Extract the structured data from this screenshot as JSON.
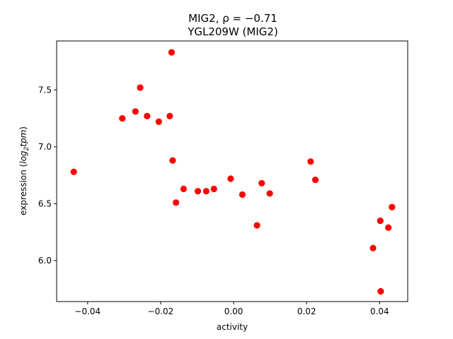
{
  "chart_data": {
    "type": "scatter",
    "title_line1": "MIG2, ρ = −0.71",
    "title_line2": "YGL209W (MIG2)",
    "xlabel": "activity",
    "ylabel_prefix": "expression (",
    "ylabel_math": "log",
    "ylabel_sub": "2",
    "ylabel_math2": "tpm",
    "ylabel_suffix": ")",
    "xlim": [
      -0.0485,
      0.0477
    ],
    "ylim": [
      5.64,
      7.93
    ],
    "xticks": [
      {
        "value": -0.04,
        "label": "−0.04"
      },
      {
        "value": -0.02,
        "label": "−0.02"
      },
      {
        "value": 0.0,
        "label": "0.00"
      },
      {
        "value": 0.02,
        "label": "0.02"
      },
      {
        "value": 0.04,
        "label": "0.04"
      }
    ],
    "yticks": [
      {
        "value": 6.0,
        "label": "6.0"
      },
      {
        "value": 6.5,
        "label": "6.5"
      },
      {
        "value": 7.0,
        "label": "7.0"
      },
      {
        "value": 7.5,
        "label": "7.5"
      }
    ],
    "marker_color": "#ff0000",
    "grid": false,
    "points": [
      {
        "x": -0.0438,
        "y": 6.78
      },
      {
        "x": -0.0305,
        "y": 7.25
      },
      {
        "x": -0.0269,
        "y": 7.31
      },
      {
        "x": -0.0256,
        "y": 7.52
      },
      {
        "x": -0.0237,
        "y": 7.27
      },
      {
        "x": -0.0205,
        "y": 7.22
      },
      {
        "x": -0.0175,
        "y": 7.27
      },
      {
        "x": -0.017,
        "y": 7.83
      },
      {
        "x": -0.0167,
        "y": 6.88
      },
      {
        "x": -0.0158,
        "y": 6.51
      },
      {
        "x": -0.0137,
        "y": 6.63
      },
      {
        "x": -0.0098,
        "y": 6.61
      },
      {
        "x": -0.0075,
        "y": 6.61
      },
      {
        "x": -0.0054,
        "y": 6.63
      },
      {
        "x": -0.0008,
        "y": 6.72
      },
      {
        "x": 0.0024,
        "y": 6.58
      },
      {
        "x": 0.0064,
        "y": 6.31
      },
      {
        "x": 0.0077,
        "y": 6.68
      },
      {
        "x": 0.0099,
        "y": 6.59
      },
      {
        "x": 0.0211,
        "y": 6.87
      },
      {
        "x": 0.0224,
        "y": 6.71
      },
      {
        "x": 0.0382,
        "y": 6.11
      },
      {
        "x": 0.0402,
        "y": 6.35
      },
      {
        "x": 0.0403,
        "y": 5.73
      },
      {
        "x": 0.0424,
        "y": 6.29
      },
      {
        "x": 0.0434,
        "y": 6.47
      }
    ]
  }
}
